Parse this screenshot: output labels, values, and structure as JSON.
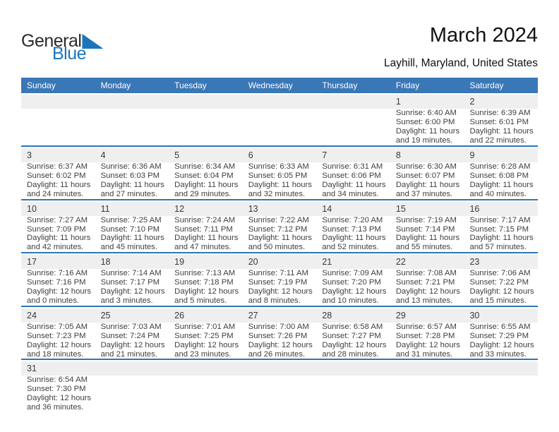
{
  "logo": {
    "part1": "General",
    "part2": "Blue"
  },
  "header": {
    "title": "March 2024",
    "subtitle": "Layhill, Maryland, United States"
  },
  "weekdays": [
    "Sunday",
    "Monday",
    "Tuesday",
    "Wednesday",
    "Thursday",
    "Friday",
    "Saturday"
  ],
  "labels": {
    "sunrise": "Sunrise:",
    "sunset": "Sunset:",
    "daylight": "Daylight:",
    "hours": "hours",
    "and": "and",
    "minutes": "minutes."
  },
  "colors": {
    "header_bg": "#3a77b6",
    "separator": "#2e75b6",
    "day_strip_bg": "#efefef",
    "logo_blue": "#1b75bc",
    "logo_dark": "#2b2b2b",
    "title_text": "#111111",
    "body_text": "#3f3f3f",
    "weekday_text": "#ffffff"
  },
  "weeks": [
    [
      null,
      null,
      null,
      null,
      null,
      {
        "d": 1,
        "rise": "6:40 AM",
        "set": "6:00 PM",
        "h": 11,
        "m": 19
      },
      {
        "d": 2,
        "rise": "6:39 AM",
        "set": "6:01 PM",
        "h": 11,
        "m": 22
      }
    ],
    [
      {
        "d": 3,
        "rise": "6:37 AM",
        "set": "6:02 PM",
        "h": 11,
        "m": 24
      },
      {
        "d": 4,
        "rise": "6:36 AM",
        "set": "6:03 PM",
        "h": 11,
        "m": 27
      },
      {
        "d": 5,
        "rise": "6:34 AM",
        "set": "6:04 PM",
        "h": 11,
        "m": 29
      },
      {
        "d": 6,
        "rise": "6:33 AM",
        "set": "6:05 PM",
        "h": 11,
        "m": 32
      },
      {
        "d": 7,
        "rise": "6:31 AM",
        "set": "6:06 PM",
        "h": 11,
        "m": 34
      },
      {
        "d": 8,
        "rise": "6:30 AM",
        "set": "6:07 PM",
        "h": 11,
        "m": 37
      },
      {
        "d": 9,
        "rise": "6:28 AM",
        "set": "6:08 PM",
        "h": 11,
        "m": 40
      }
    ],
    [
      {
        "d": 10,
        "rise": "7:27 AM",
        "set": "7:09 PM",
        "h": 11,
        "m": 42
      },
      {
        "d": 11,
        "rise": "7:25 AM",
        "set": "7:10 PM",
        "h": 11,
        "m": 45
      },
      {
        "d": 12,
        "rise": "7:24 AM",
        "set": "7:11 PM",
        "h": 11,
        "m": 47
      },
      {
        "d": 13,
        "rise": "7:22 AM",
        "set": "7:12 PM",
        "h": 11,
        "m": 50
      },
      {
        "d": 14,
        "rise": "7:20 AM",
        "set": "7:13 PM",
        "h": 11,
        "m": 52
      },
      {
        "d": 15,
        "rise": "7:19 AM",
        "set": "7:14 PM",
        "h": 11,
        "m": 55
      },
      {
        "d": 16,
        "rise": "7:17 AM",
        "set": "7:15 PM",
        "h": 11,
        "m": 57
      }
    ],
    [
      {
        "d": 17,
        "rise": "7:16 AM",
        "set": "7:16 PM",
        "h": 12,
        "m": 0
      },
      {
        "d": 18,
        "rise": "7:14 AM",
        "set": "7:17 PM",
        "h": 12,
        "m": 3
      },
      {
        "d": 19,
        "rise": "7:13 AM",
        "set": "7:18 PM",
        "h": 12,
        "m": 5
      },
      {
        "d": 20,
        "rise": "7:11 AM",
        "set": "7:19 PM",
        "h": 12,
        "m": 8
      },
      {
        "d": 21,
        "rise": "7:09 AM",
        "set": "7:20 PM",
        "h": 12,
        "m": 10
      },
      {
        "d": 22,
        "rise": "7:08 AM",
        "set": "7:21 PM",
        "h": 12,
        "m": 13
      },
      {
        "d": 23,
        "rise": "7:06 AM",
        "set": "7:22 PM",
        "h": 12,
        "m": 15
      }
    ],
    [
      {
        "d": 24,
        "rise": "7:05 AM",
        "set": "7:23 PM",
        "h": 12,
        "m": 18
      },
      {
        "d": 25,
        "rise": "7:03 AM",
        "set": "7:24 PM",
        "h": 12,
        "m": 21
      },
      {
        "d": 26,
        "rise": "7:01 AM",
        "set": "7:25 PM",
        "h": 12,
        "m": 23
      },
      {
        "d": 27,
        "rise": "7:00 AM",
        "set": "7:26 PM",
        "h": 12,
        "m": 26
      },
      {
        "d": 28,
        "rise": "6:58 AM",
        "set": "7:27 PM",
        "h": 12,
        "m": 28
      },
      {
        "d": 29,
        "rise": "6:57 AM",
        "set": "7:28 PM",
        "h": 12,
        "m": 31
      },
      {
        "d": 30,
        "rise": "6:55 AM",
        "set": "7:29 PM",
        "h": 12,
        "m": 33
      }
    ],
    [
      {
        "d": 31,
        "rise": "6:54 AM",
        "set": "7:30 PM",
        "h": 12,
        "m": 36
      },
      null,
      null,
      null,
      null,
      null,
      null
    ]
  ]
}
